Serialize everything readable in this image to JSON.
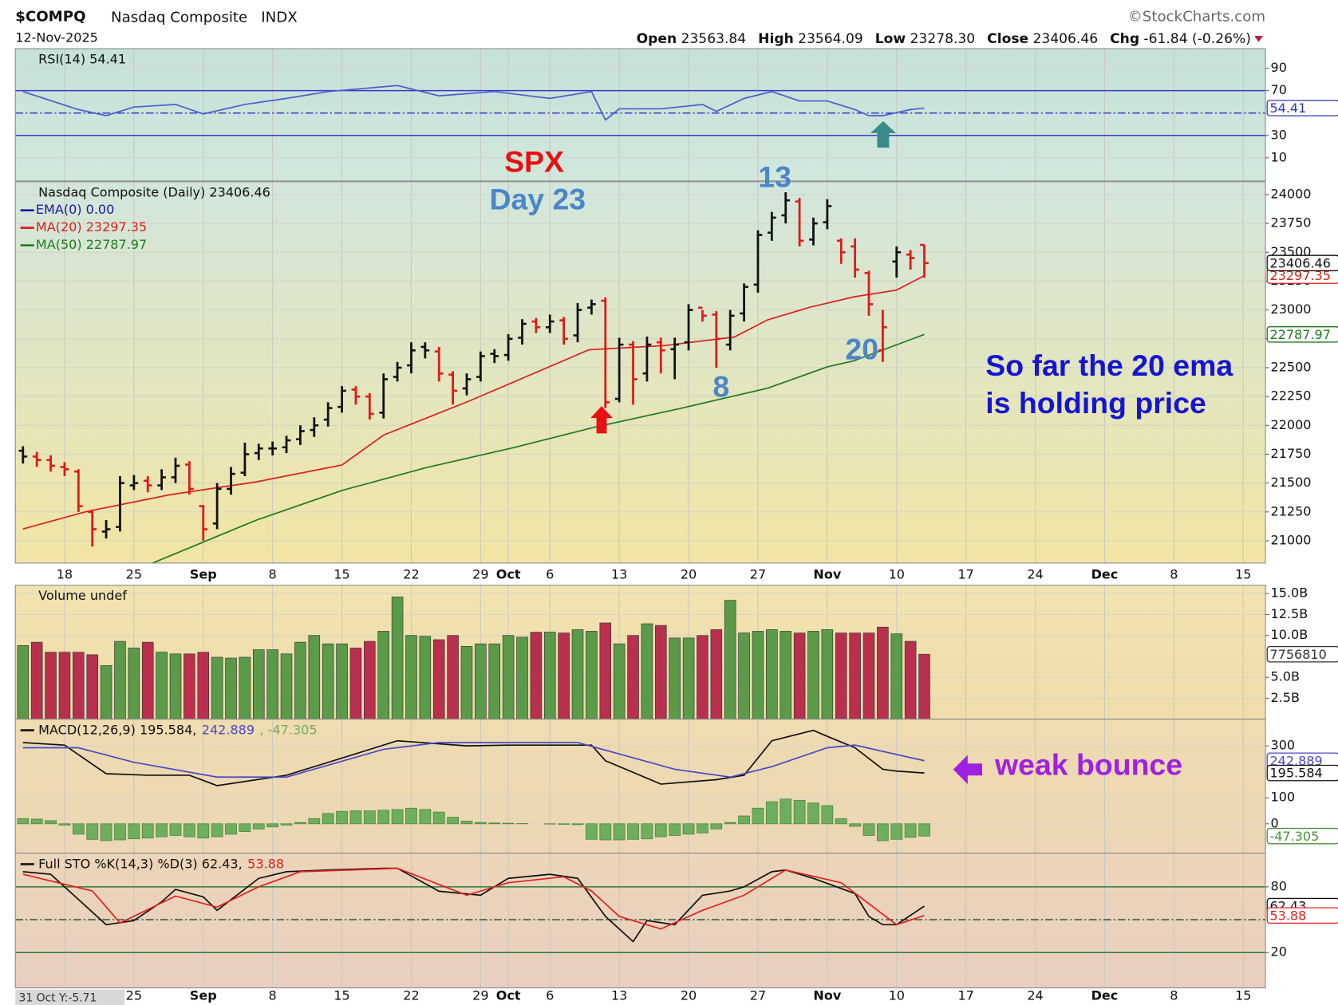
{
  "header": {
    "symbol": "$COMPQ",
    "name": "Nasdaq Composite",
    "exchange": "INDX",
    "date": "12-Nov-2025",
    "source": "©StockCharts.com",
    "quote": [
      {
        "label": "Open",
        "value": "23563.84"
      },
      {
        "label": "High",
        "value": "23564.09"
      },
      {
        "label": "Low",
        "value": "23278.30"
      },
      {
        "label": "Close",
        "value": "23406.46"
      },
      {
        "label": "Chg",
        "value": "-61.84 (-0.26%)"
      }
    ]
  },
  "x_axis": {
    "xlim": [
      -0.55,
      89.6
    ],
    "xticks": [
      {
        "value": 3,
        "label": "18"
      },
      {
        "value": 8,
        "label": "25"
      },
      {
        "value": 13,
        "label": "Sep"
      },
      {
        "value": 18,
        "label": "8"
      },
      {
        "value": 23,
        "label": "15"
      },
      {
        "value": 28,
        "label": "22"
      },
      {
        "value": 33,
        "label": "29"
      },
      {
        "value": 35,
        "label": "Oct"
      },
      {
        "value": 38,
        "label": "6"
      },
      {
        "value": 43,
        "label": "13"
      },
      {
        "value": 48,
        "label": "20"
      },
      {
        "value": 53,
        "label": "27"
      },
      {
        "value": 58,
        "label": "Nov"
      },
      {
        "value": 63,
        "label": "10"
      },
      {
        "value": 68,
        "label": "17"
      },
      {
        "value": 73,
        "label": "24"
      },
      {
        "value": 78,
        "label": "Dec"
      },
      {
        "value": 83,
        "label": "8"
      },
      {
        "value": 88,
        "label": "15"
      }
    ]
  },
  "chart_data": [
    {
      "type": "line",
      "title": "RSI(14) 54.41",
      "ylim": [
        -10.6,
        107.5
      ],
      "yticks": [
        10,
        30,
        70,
        90
      ],
      "reference_lines": [
        {
          "value": 70,
          "color": "#3a3ac8",
          "dash": false
        },
        {
          "value": 50,
          "color": "#3a3ac8",
          "dash": true
        },
        {
          "value": 30,
          "color": "#3a3ac8",
          "dash": false
        }
      ],
      "series": [
        {
          "color": "#4a5ed0",
          "x": [
            0,
            4,
            6,
            8,
            11,
            13,
            16,
            19,
            22,
            27,
            30,
            34,
            38,
            41,
            42,
            43,
            46,
            49,
            50,
            52,
            54,
            56,
            58,
            60,
            61,
            62,
            64,
            65
          ],
          "values": [
            69.2,
            53.1,
            47.7,
            55.4,
            57.7,
            49.2,
            57.7,
            63.1,
            69.2,
            74.6,
            65.4,
            69.2,
            63.1,
            69.2,
            43.8,
            53.8,
            53.8,
            57.7,
            51.5,
            63.1,
            69.2,
            60.8,
            60.8,
            53.1,
            47.7,
            47.7,
            53.1,
            54.41
          ]
        }
      ],
      "badges": [
        {
          "value": 54.41,
          "color": "#2a3ab0"
        }
      ]
    },
    {
      "type": "ohlc",
      "title": "Nasdaq Composite (Daily) 23406.46",
      "up_color": "#111111",
      "down_color": "#e01818",
      "open": [
        21780,
        21730,
        21700,
        21640,
        21600,
        21250,
        21080,
        21120,
        21480,
        21520,
        21480,
        21550,
        21660,
        21300,
        21150,
        21450,
        21590,
        21760,
        21800,
        21810,
        21880,
        21960,
        22050,
        22160,
        22310,
        22250,
        22110,
        22420,
        22520,
        22680,
        22640,
        22440,
        22320,
        22420,
        22620,
        22610,
        22760,
        22900,
        22850,
        22910,
        22780,
        23020,
        23080,
        22230,
        22700,
        22450,
        22720,
        22660,
        22720,
        23020,
        22960,
        22700,
        22970,
        23220,
        23670,
        23820,
        23940,
        23610,
        23760,
        23600,
        23550,
        23320,
        22650,
        23420,
        23480,
        23563.84
      ],
      "high": [
        21820,
        21770,
        21740,
        21680,
        21620,
        21270,
        21180,
        21560,
        21570,
        21560,
        21620,
        21720,
        21690,
        21310,
        21500,
        21640,
        21850,
        21840,
        21860,
        21910,
        22000,
        22070,
        22200,
        22340,
        22340,
        22280,
        22450,
        22550,
        22720,
        22720,
        22680,
        22470,
        22450,
        22640,
        22660,
        22790,
        22920,
        22930,
        22960,
        22940,
        23060,
        23090,
        23110,
        22760,
        22730,
        22770,
        22760,
        22760,
        23050,
        23000,
        22990,
        23000,
        23230,
        23690,
        23850,
        24020,
        23970,
        23800,
        23960,
        23620,
        23620,
        23340,
        23000,
        23550,
        23520,
        23564.09
      ],
      "low": [
        21670,
        21640,
        21600,
        21560,
        21250,
        20950,
        21020,
        21080,
        21440,
        21420,
        21440,
        21500,
        21400,
        21000,
        21100,
        21400,
        21560,
        21700,
        21740,
        21760,
        21830,
        21900,
        21990,
        22110,
        22180,
        22050,
        22060,
        22380,
        22450,
        22580,
        22380,
        22180,
        22260,
        22380,
        22540,
        22560,
        22700,
        22800,
        22800,
        22700,
        22720,
        22960,
        22150,
        22200,
        22180,
        22380,
        22450,
        22400,
        22650,
        22900,
        22500,
        22650,
        22900,
        23150,
        23600,
        23750,
        23550,
        23560,
        23700,
        23400,
        23280,
        22950,
        22550,
        23280,
        23350,
        23278.3
      ],
      "close": [
        21730,
        21700,
        21650,
        21620,
        21300,
        21100,
        21100,
        21500,
        21500,
        21480,
        21550,
        21650,
        21450,
        21100,
        21450,
        21580,
        21750,
        21800,
        21800,
        21870,
        21950,
        22000,
        22150,
        22300,
        22250,
        22100,
        22400,
        22500,
        22650,
        22650,
        22450,
        22300,
        22400,
        22600,
        22600,
        22750,
        22880,
        22850,
        22900,
        22750,
        23000,
        23050,
        22200,
        22700,
        22400,
        22700,
        22650,
        22700,
        23000,
        22950,
        22750,
        22950,
        23200,
        23650,
        23800,
        23950,
        23600,
        23750,
        23900,
        23500,
        23350,
        23050,
        22850,
        23500,
        23450,
        23406.46
      ],
      "ylim": [
        20807,
        24111
      ],
      "yticks": [
        21000,
        21250,
        21500,
        21750,
        22000,
        22250,
        22500,
        22750,
        23000,
        23250,
        23500,
        23750,
        24000
      ],
      "series": [
        {
          "name": "EMA(0) 0.00",
          "color": "#1a1a9a"
        },
        {
          "name": "MA(20) 23297.35",
          "color": "#d82020",
          "x": [
            0,
            4.5,
            10.6,
            16.8,
            23,
            26,
            32.2,
            36.5,
            40.8,
            46.3,
            51.3,
            53.7,
            56.8,
            59.9,
            63,
            65
          ],
          "values": [
            21103,
            21251,
            21399,
            21510,
            21657,
            21916,
            22212,
            22433,
            22655,
            22692,
            22766,
            22914,
            23025,
            23113,
            23172,
            23297.35
          ]
        },
        {
          "name": "MA(50) 22787.97",
          "color": "#1f7a1f",
          "x": [
            9,
            16.8,
            23,
            29.1,
            35.3,
            41.4,
            47.6,
            53.7,
            58,
            59.9,
            65
          ],
          "values": [
            20790,
            21177,
            21436,
            21635,
            21805,
            21990,
            22152,
            22322,
            22507,
            22559,
            22787.97
          ]
        }
      ],
      "badges": [
        {
          "value": 22787.97,
          "color": "#1f7a1f"
        },
        {
          "value": 23297.35,
          "color": "#d82020"
        },
        {
          "value": 23406.46,
          "color": "#111111"
        }
      ],
      "annotations": [
        "SPX",
        "Day 23",
        "13",
        "8",
        "20",
        "So far the 20 ema",
        "is holding price"
      ]
    },
    {
      "type": "bar",
      "title": "Volume undef",
      "up_color": "#5a9a48",
      "down_color": "#b8304e",
      "ylim": [
        0,
        16
      ],
      "yticks": [
        {
          "value": 2.5,
          "label": "2.5B"
        },
        {
          "value": 5,
          "label": "5.0B"
        },
        {
          "value": 10,
          "label": "10.0B"
        },
        {
          "value": 12.5,
          "label": "12.5B"
        },
        {
          "value": 15,
          "label": "15.0B"
        }
      ],
      "values": [
        8.8,
        9.2,
        8.0,
        8.0,
        8.0,
        7.7,
        6.4,
        9.3,
        8.5,
        9.2,
        8.0,
        7.8,
        7.8,
        8.0,
        7.4,
        7.3,
        7.4,
        8.3,
        8.3,
        7.8,
        9.2,
        10.0,
        9.0,
        9.0,
        8.5,
        9.3,
        10.5,
        14.6,
        10.0,
        9.9,
        9.5,
        10.0,
        8.7,
        9.0,
        9.0,
        10.0,
        9.8,
        10.4,
        10.4,
        10.3,
        10.7,
        10.5,
        11.5,
        9.0,
        10.0,
        11.4,
        11.2,
        9.7,
        9.7,
        10.0,
        10.7,
        14.2,
        10.3,
        10.5,
        10.7,
        10.5,
        10.3,
        10.5,
        10.7,
        10.3,
        10.3,
        10.3,
        11.0,
        10.2,
        9.3,
        7.76
      ],
      "badges": [
        {
          "value": 7.75681,
          "label": "7756810",
          "color": "#333333"
        }
      ]
    },
    {
      "type": "line",
      "ylim": [
        -113,
        403
      ],
      "yticks": [
        0,
        100,
        300
      ],
      "series": [
        {
          "name": "MACD(12,26,9) 195.584,",
          "color": "#111111",
          "x": [
            0,
            3,
            6,
            9,
            12,
            14,
            19,
            23,
            27,
            32,
            35,
            41,
            42,
            46,
            50,
            52,
            54,
            57,
            58,
            60,
            62,
            63,
            65
          ],
          "values": [
            313,
            303,
            193,
            187,
            187,
            147,
            187,
            253,
            320,
            300,
            303,
            303,
            243,
            153,
            170,
            187,
            320,
            360,
            337,
            293,
            210,
            203,
            195.584
          ]
        },
        {
          "name": "242.889",
          "color": "#4848c8",
          "x": [
            0,
            4,
            8,
            14,
            19,
            26,
            30,
            40,
            47,
            51,
            54,
            58,
            60,
            65
          ],
          "values": [
            293,
            293,
            237,
            180,
            180,
            287,
            313,
            313,
            210,
            180,
            220,
            293,
            303,
            242.889
          ]
        },
        {
          "name": ", -47.305",
          "color": "#6fae5f",
          "style": "bar",
          "values": [
            20,
            18,
            12,
            -5,
            -40,
            -60,
            -65,
            -62,
            -58,
            -55,
            -50,
            -45,
            -50,
            -55,
            -50,
            -40,
            -30,
            -20,
            -12,
            -5,
            5,
            20,
            40,
            48,
            50,
            50,
            52,
            55,
            60,
            55,
            45,
            25,
            10,
            5,
            3,
            2,
            1,
            0,
            -1,
            -2,
            -3,
            -60,
            -62,
            -62,
            -60,
            -58,
            -50,
            -45,
            -40,
            -35,
            -20,
            5,
            30,
            60,
            85,
            95,
            90,
            80,
            70,
            20,
            -10,
            -45,
            -65,
            -60,
            -52,
            -47.305
          ]
        }
      ],
      "badges": [
        {
          "value": 242.889,
          "color": "#4848c8"
        },
        {
          "value": 195.584,
          "color": "#111111"
        },
        {
          "value": -47.305,
          "color": "#4f8f3f"
        }
      ],
      "annotations": [
        "weak bounce"
      ]
    },
    {
      "type": "line",
      "ylim": [
        -12.3,
        110.8
      ],
      "yticks": [
        20,
        80
      ],
      "reference_lines": [
        {
          "value": 80,
          "color": "#2a7a3a",
          "dash": false
        },
        {
          "value": 50,
          "color": "#2a5a3a",
          "dash": true
        },
        {
          "value": 20,
          "color": "#2a7a3a",
          "dash": false
        }
      ],
      "series": [
        {
          "name": "Full STO %K(14,3) %D(3) 62.43,",
          "color": "#111111",
          "x": [
            0,
            2,
            4,
            6,
            8,
            10,
            11,
            13,
            14,
            17,
            19,
            22,
            26,
            27,
            30,
            33,
            35,
            38,
            40,
            42,
            44,
            45,
            47,
            49,
            51,
            52,
            54,
            55,
            57,
            60,
            61,
            62,
            63,
            65
          ],
          "values": [
            93.8,
            91.5,
            68.5,
            45.4,
            49.2,
            66.2,
            77.7,
            70.8,
            58.5,
            87.7,
            93.8,
            95.4,
            96.9,
            96.9,
            76,
            72.3,
            87.7,
            91.5,
            87.7,
            53,
            30,
            49.2,
            45.4,
            72.3,
            76.2,
            80,
            93.8,
            95.4,
            87.7,
            73.8,
            53,
            45.4,
            45.4,
            62.43
          ]
        },
        {
          "name": "53.88",
          "color": "#e02020",
          "x": [
            0,
            5,
            7,
            11,
            14,
            17,
            20,
            27,
            32,
            35,
            39,
            41,
            43,
            46,
            49,
            52,
            55,
            59,
            61,
            63,
            65
          ],
          "values": [
            91.5,
            76.2,
            47,
            71.5,
            61.5,
            80,
            93.8,
            96.9,
            72.3,
            83.8,
            89.2,
            76.2,
            53,
            41.5,
            58.5,
            72.3,
            95.4,
            83.8,
            64.6,
            45.4,
            53.88
          ]
        }
      ],
      "badges": [
        {
          "value": 62.43,
          "color": "#111111"
        },
        {
          "value": 53.88,
          "color": "#e02020"
        }
      ]
    }
  ],
  "footer": "31 Oct Y:-5.71"
}
